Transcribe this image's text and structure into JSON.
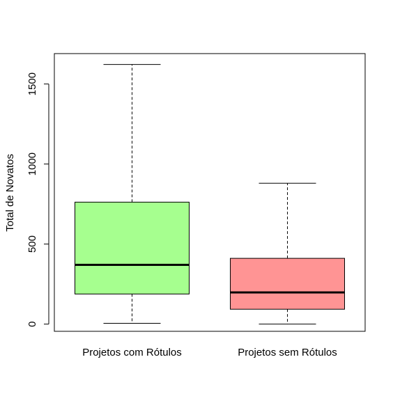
{
  "chart_data": {
    "type": "boxplot",
    "title": "",
    "xlabel": "",
    "ylabel": "Total de Novatos",
    "ylim": [
      -45,
      1690
    ],
    "y_ticks": [
      0,
      500,
      1000,
      1500
    ],
    "grid": false,
    "categories": [
      "Projetos com Rótulos",
      "Projetos sem Rótulos"
    ],
    "boxes": [
      {
        "category": "Projetos com Rótulos",
        "min": 5,
        "q1": 188,
        "median": 370,
        "q3": 762,
        "max": 1622,
        "color": "#a6ff8f"
      },
      {
        "category": "Projetos sem Rótulos",
        "min": 0,
        "q1": 93,
        "median": 198,
        "q3": 411,
        "max": 880,
        "color": "#ff9494"
      }
    ]
  }
}
